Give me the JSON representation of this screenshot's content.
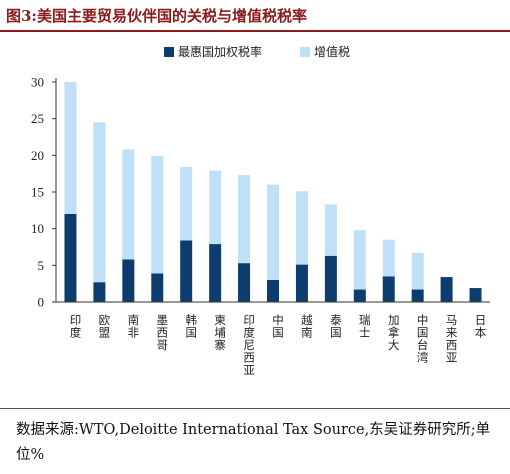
{
  "title": "图3:美国主要贸易伙伴国的关税与增值税税率",
  "source": "数据来源:WTO,Deloitte International Tax Source,东吴证券研究所;单位%",
  "chart_data": {
    "type": "bar",
    "stacked": true,
    "categories": [
      "印度",
      "欧盟",
      "南非",
      "墨西哥",
      "韩国",
      "柬埔寨",
      "印度尼西亚",
      "中国",
      "越南",
      "泰国",
      "瑞士",
      "加拿大",
      "中国台湾",
      "马来西亚",
      "日本"
    ],
    "series": [
      {
        "name": "最惠国加权税率",
        "color": "#0d3c6e",
        "values": [
          12,
          2.7,
          5.8,
          3.9,
          8.4,
          7.9,
          5.3,
          3.0,
          5.1,
          6.3,
          1.7,
          3.5,
          1.7,
          3.4,
          1.9
        ]
      },
      {
        "name": "增值税",
        "color": "#bfe0f6",
        "values": [
          18,
          21.8,
          15.0,
          16.0,
          10.0,
          10.0,
          12.0,
          13.0,
          10.0,
          7.0,
          8.1,
          5.0,
          5.0,
          0,
          0
        ]
      }
    ],
    "ylim": [
      0,
      30
    ],
    "yticks": [
      0,
      5,
      10,
      15,
      20,
      25,
      30
    ],
    "legend_position": "top-center",
    "grid": false
  }
}
